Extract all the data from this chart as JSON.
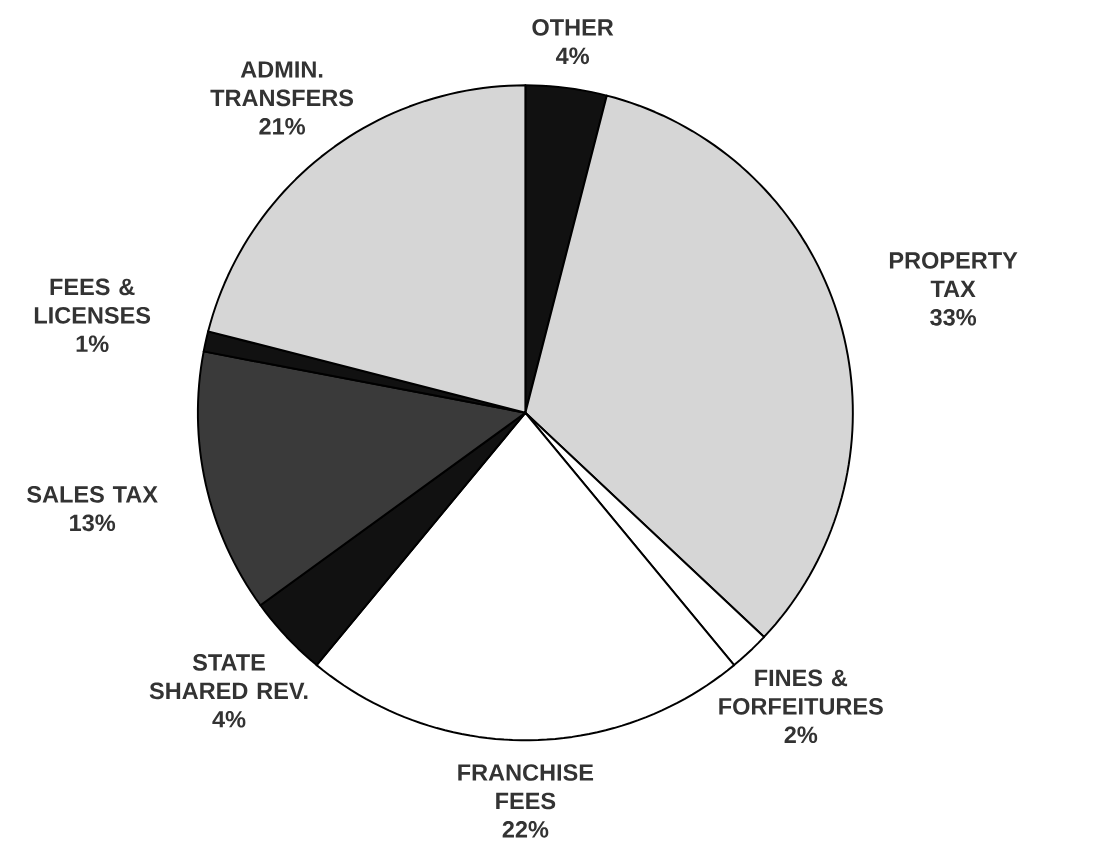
{
  "chart_data": {
    "type": "pie",
    "categories": [
      "OTHER",
      "PROPERTY TAX",
      "FINES & FORFEITURES",
      "FRANCHISE FEES",
      "STATE SHARED REV.",
      "SALES TAX",
      "FEES & LICENSES",
      "ADMIN. TRANSFERS"
    ],
    "values": [
      4,
      33,
      2,
      22,
      4,
      13,
      1,
      21
    ],
    "colors": [
      "#111111",
      "#d6d6d6",
      "#ffffff",
      "#ffffff",
      "#111111",
      "#3a3a3a",
      "#111111",
      "#d6d6d6"
    ],
    "value_labels": [
      "4%",
      "33%",
      "2%",
      "22%",
      "4%",
      "13%",
      "1%",
      "21%"
    ]
  }
}
